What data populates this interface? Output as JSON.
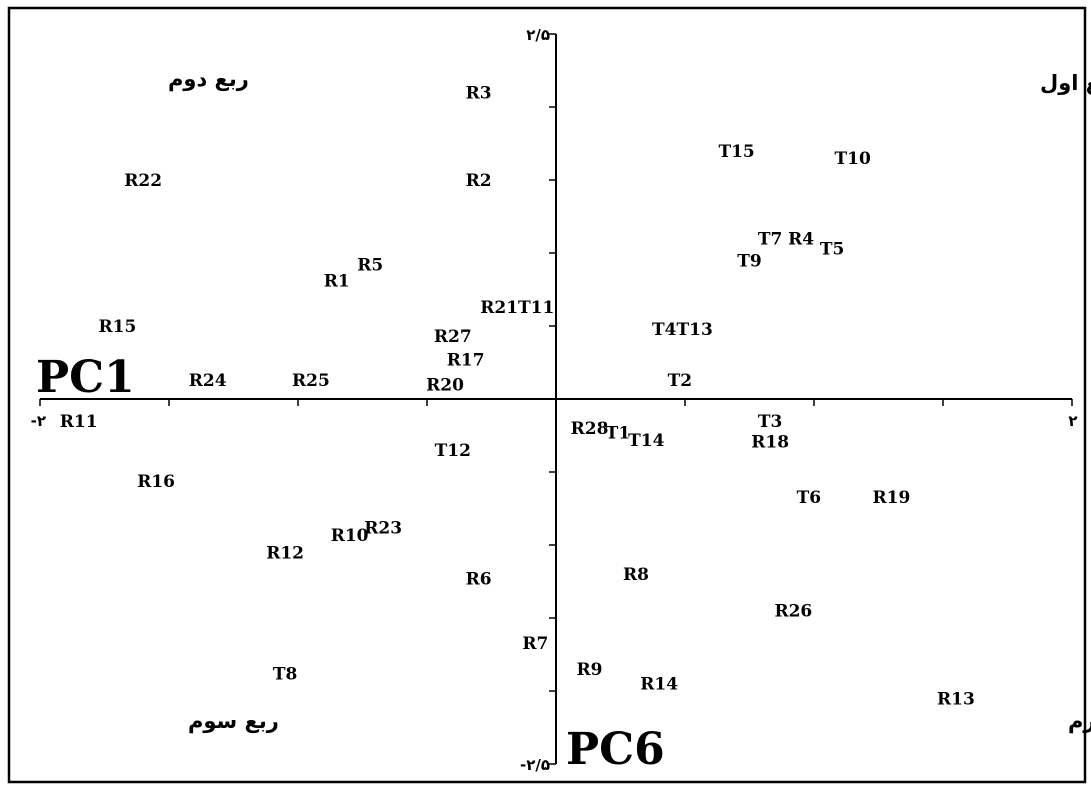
{
  "chart_data": {
    "type": "scatter",
    "title": "",
    "xlabel": "PC1",
    "ylabel": "PC6",
    "xlim": [
      -2,
      2
    ],
    "ylim": [
      -2.5,
      2.5
    ],
    "xtick_labels": {
      "min": "-۲",
      "max": "۲"
    },
    "ytick_labels": {
      "max": "۲/۵",
      "min": "-۲/۵"
    },
    "quadrant_labels": {
      "q1": "ربع اول",
      "q2": "ربع دوم",
      "q3": "ربع سوم",
      "q4": "ربع چهارم"
    },
    "points": [
      {
        "label": "R3",
        "x": -0.3,
        "y": 2.1
      },
      {
        "label": "R22",
        "x": -1.6,
        "y": 1.5
      },
      {
        "label": "R2",
        "x": -0.3,
        "y": 1.5
      },
      {
        "label": "T15",
        "x": 0.7,
        "y": 1.7
      },
      {
        "label": "T10",
        "x": 1.15,
        "y": 1.65
      },
      {
        "label": "T7",
        "x": 0.83,
        "y": 1.1
      },
      {
        "label": "R4",
        "x": 0.95,
        "y": 1.1
      },
      {
        "label": "T5",
        "x": 1.07,
        "y": 1.03
      },
      {
        "label": "T9",
        "x": 0.75,
        "y": 0.95
      },
      {
        "label": "R5",
        "x": -0.72,
        "y": 0.92
      },
      {
        "label": "R1",
        "x": -0.85,
        "y": 0.81
      },
      {
        "label": "R21T11",
        "x": -0.15,
        "y": 0.63
      },
      {
        "label": "R15",
        "x": -1.7,
        "y": 0.5
      },
      {
        "label": "T4T13",
        "x": 0.49,
        "y": 0.48
      },
      {
        "label": "R27",
        "x": -0.4,
        "y": 0.43
      },
      {
        "label": "R17",
        "x": -0.35,
        "y": 0.27
      },
      {
        "label": "R24",
        "x": -1.35,
        "y": 0.13
      },
      {
        "label": "R25",
        "x": -0.95,
        "y": 0.13
      },
      {
        "label": "R20",
        "x": -0.43,
        "y": 0.1
      },
      {
        "label": "T2",
        "x": 0.48,
        "y": 0.13
      },
      {
        "label": "R11",
        "x": -1.85,
        "y": -0.15
      },
      {
        "label": "T3",
        "x": 0.83,
        "y": -0.15
      },
      {
        "label": "R28",
        "x": 0.13,
        "y": -0.2
      },
      {
        "label": "T1",
        "x": 0.24,
        "y": -0.23
      },
      {
        "label": "T14",
        "x": 0.35,
        "y": -0.28
      },
      {
        "label": "R18",
        "x": 0.83,
        "y": -0.29
      },
      {
        "label": "T12",
        "x": -0.4,
        "y": -0.35
      },
      {
        "label": "R16",
        "x": -1.55,
        "y": -0.56
      },
      {
        "label": "T6",
        "x": 0.98,
        "y": -0.67
      },
      {
        "label": "R19",
        "x": 1.3,
        "y": -0.67
      },
      {
        "label": "R23",
        "x": -0.67,
        "y": -0.88
      },
      {
        "label": "R10",
        "x": -0.8,
        "y": -0.93
      },
      {
        "label": "R12",
        "x": -1.05,
        "y": -1.05
      },
      {
        "label": "R8",
        "x": 0.31,
        "y": -1.2
      },
      {
        "label": "R6",
        "x": -0.3,
        "y": -1.23
      },
      {
        "label": "R26",
        "x": 0.92,
        "y": -1.45
      },
      {
        "label": "R7",
        "x": -0.08,
        "y": -1.67
      },
      {
        "label": "R9",
        "x": 0.13,
        "y": -1.85
      },
      {
        "label": "T8",
        "x": -1.05,
        "y": -1.88
      },
      {
        "label": "R14",
        "x": 0.4,
        "y": -1.95
      },
      {
        "label": "R13",
        "x": 1.55,
        "y": -2.05
      }
    ]
  }
}
